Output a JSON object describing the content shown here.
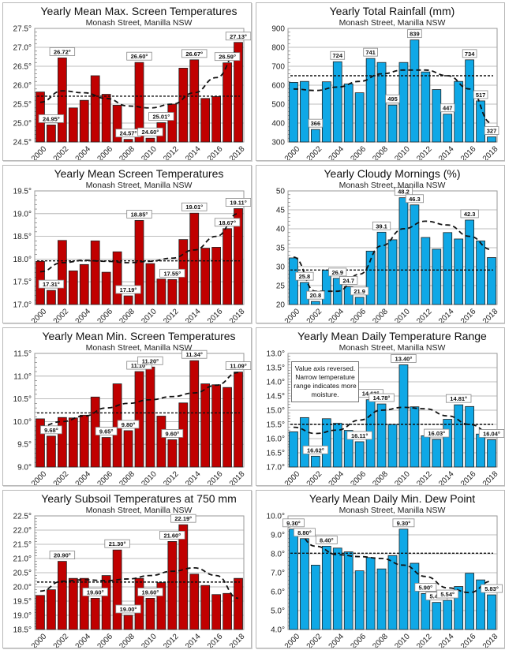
{
  "chart_data": [
    {
      "type": "bar",
      "title": "Yearly Mean Max. Screen Temperatures",
      "subtitle": "Monash Street, Manilla NSW",
      "bar_color": "#c00000",
      "years": [
        2000,
        2001,
        2002,
        2003,
        2004,
        2005,
        2006,
        2007,
        2008,
        2009,
        2010,
        2011,
        2012,
        2013,
        2014,
        2015,
        2016,
        2017,
        2018
      ],
      "x_tick_labels": [
        "2000",
        "2002",
        "2004",
        "2006",
        "2008",
        "2010",
        "2012",
        "2014",
        "2016",
        "2018"
      ],
      "ylim": [
        24.5,
        27.5
      ],
      "reversed": false,
      "y_tick_labels": [
        "24.5°",
        "25.0°",
        "25.5°",
        "26.0°",
        "26.5°",
        "27.0°",
        "27.5°"
      ],
      "values": [
        25.82,
        24.95,
        26.72,
        25.4,
        25.6,
        26.25,
        25.76,
        25.47,
        24.57,
        26.6,
        24.6,
        25.01,
        25.5,
        26.45,
        26.67,
        25.65,
        25.7,
        26.59,
        27.13
      ],
      "data_labels": [
        null,
        "24.95°",
        "26.72°",
        null,
        null,
        null,
        null,
        null,
        "24.57°",
        "26.60°",
        "24.60°",
        "25.01°",
        null,
        null,
        "26.67°",
        null,
        null,
        "26.59°",
        "27.13°"
      ],
      "mean": 25.71,
      "trend": [
        25.55,
        25.85,
        25.8,
        25.65,
        25.45,
        25.4,
        25.5,
        25.8,
        26.2,
        26.9
      ]
    },
    {
      "type": "bar",
      "title": "Yearly Total Rainfall (mm)",
      "subtitle": "Monash Street, Manilla NSW",
      "bar_color": "#0fa8e6",
      "years": [
        2000,
        2001,
        2002,
        2003,
        2004,
        2005,
        2006,
        2007,
        2008,
        2009,
        2010,
        2011,
        2012,
        2013,
        2014,
        2015,
        2016,
        2017,
        2018
      ],
      "x_tick_labels": [
        "2000",
        "2002",
        "2004",
        "2006",
        "2008",
        "2010",
        "2012",
        "2014",
        "2016",
        "2018"
      ],
      "ylim": [
        300,
        900
      ],
      "reversed": false,
      "y_tick_labels": [
        "300",
        "400",
        "500",
        "600",
        "700",
        "800",
        "900"
      ],
      "values": [
        615,
        620,
        366,
        618,
        724,
        607,
        560,
        741,
        720,
        495,
        720,
        839,
        670,
        577,
        447,
        620,
        734,
        517,
        327
      ],
      "data_labels": [
        null,
        null,
        "366",
        null,
        "724",
        null,
        null,
        "741",
        null,
        "495",
        null,
        "839",
        null,
        null,
        "447",
        null,
        "734",
        "517",
        "327"
      ],
      "mean": 650,
      "trend": [
        580,
        572,
        590,
        620,
        660,
        680,
        680,
        650,
        580,
        400
      ]
    },
    {
      "type": "bar",
      "title": "Yearly Mean Screen Temperatures",
      "subtitle": "Monash Street, Manilla NSW",
      "bar_color": "#c00000",
      "years": [
        2000,
        2001,
        2002,
        2003,
        2004,
        2005,
        2006,
        2007,
        2008,
        2009,
        2010,
        2011,
        2012,
        2013,
        2014,
        2015,
        2016,
        2017,
        2018
      ],
      "x_tick_labels": [
        "2000",
        "2002",
        "2004",
        "2006",
        "2008",
        "2010",
        "2012",
        "2014",
        "2016",
        "2018"
      ],
      "ylim": [
        17.0,
        19.5
      ],
      "reversed": false,
      "y_tick_labels": [
        "17.0°",
        "17.5°",
        "18.0°",
        "18.5°",
        "19.0°",
        "19.5°"
      ],
      "values": [
        17.95,
        17.31,
        18.41,
        17.74,
        17.88,
        18.4,
        17.71,
        18.16,
        17.19,
        18.85,
        17.9,
        17.56,
        17.55,
        18.43,
        19.01,
        18.24,
        18.26,
        18.67,
        19.11
      ],
      "data_labels": [
        null,
        "17.31°",
        null,
        null,
        null,
        null,
        null,
        null,
        "17.19°",
        "18.85°",
        null,
        null,
        "17.55°",
        null,
        "19.01°",
        null,
        null,
        "18.67°",
        "19.11°"
      ],
      "mean": 17.96,
      "trend": [
        17.72,
        17.92,
        17.97,
        17.95,
        17.92,
        17.95,
        18.02,
        18.2,
        18.5,
        19.0
      ]
    },
    {
      "type": "bar",
      "title": "Yearly Cloudy Mornings (%)",
      "subtitle": "Monash Street, Manilla NSW",
      "bar_color": "#0fa8e6",
      "years": [
        2000,
        2001,
        2002,
        2003,
        2004,
        2005,
        2006,
        2007,
        2008,
        2009,
        2010,
        2011,
        2012,
        2013,
        2014,
        2015,
        2016,
        2017,
        2018
      ],
      "x_tick_labels": [
        "2000",
        "2002",
        "2004",
        "2006",
        "2008",
        "2010",
        "2012",
        "2014",
        "2016",
        "2018"
      ],
      "ylim": [
        20,
        50
      ],
      "reversed": false,
      "y_tick_labels": [
        "20",
        "25",
        "30",
        "35",
        "40",
        "45",
        "50"
      ],
      "values": [
        32.3,
        25.8,
        20.8,
        29.1,
        26.9,
        24.7,
        21.9,
        34.1,
        39.1,
        37.1,
        48.2,
        46.3,
        37.7,
        34.6,
        39.0,
        37.3,
        42.3,
        36.8,
        32.4
      ],
      "data_labels": [
        null,
        "25.8",
        "20.8",
        null,
        "26.9",
        "24.7",
        "21.9",
        null,
        "39.1",
        null,
        "48.2",
        "46.3",
        null,
        null,
        null,
        null,
        "42.3",
        null,
        null
      ],
      "mean": 29.1,
      "trend": [
        32.5,
        23.5,
        23.5,
        28,
        35.5,
        40,
        42,
        41,
        38,
        34.5
      ]
    },
    {
      "type": "bar",
      "title": "Yearly Mean Min. Screen Temperatures",
      "subtitle": "Monash Street, Manilla NSW",
      "bar_color": "#c00000",
      "years": [
        2000,
        2001,
        2002,
        2003,
        2004,
        2005,
        2006,
        2007,
        2008,
        2009,
        2010,
        2011,
        2012,
        2013,
        2014,
        2015,
        2016,
        2017,
        2018
      ],
      "x_tick_labels": [
        "2000",
        "2002",
        "2004",
        "2006",
        "2008",
        "2010",
        "2012",
        "2014",
        "2016",
        "2018"
      ],
      "ylim": [
        9.0,
        11.5
      ],
      "reversed": false,
      "y_tick_labels": [
        "9.0°",
        "9.5°",
        "10.0°",
        "10.5°",
        "11.0°",
        "11.5°"
      ],
      "values": [
        10.06,
        9.68,
        10.09,
        10.08,
        10.14,
        10.54,
        9.65,
        10.83,
        9.8,
        11.1,
        11.2,
        10.12,
        9.6,
        10.41,
        11.34,
        10.83,
        10.81,
        10.75,
        11.09
      ],
      "data_labels": [
        null,
        "9.68°",
        null,
        null,
        null,
        null,
        "9.65°",
        null,
        "9.80°",
        "11.10°",
        "11.20°",
        null,
        "9.60°",
        null,
        "11.34°",
        null,
        null,
        null,
        "11.09°"
      ],
      "mean": 10.19,
      "trend": [
        9.9,
        10.0,
        10.12,
        10.3,
        10.4,
        10.48,
        10.55,
        10.63,
        10.8,
        11.08
      ]
    },
    {
      "type": "bar",
      "title": "Yearly Mean Daily Temperature Range",
      "subtitle": "Monash Street, Manilla NSW",
      "bar_color": "#0fa8e6",
      "note": "Value axis reversed. Narrow temperature range indicates more moisture.",
      "years": [
        2000,
        2001,
        2002,
        2003,
        2004,
        2005,
        2006,
        2007,
        2008,
        2009,
        2010,
        2011,
        2012,
        2013,
        2014,
        2015,
        2016,
        2017,
        2018
      ],
      "x_tick_labels": [
        "2000",
        "2002",
        "2004",
        "2006",
        "2008",
        "2010",
        "2012",
        "2014",
        "2016",
        "2018"
      ],
      "ylim": [
        13.0,
        17.0
      ],
      "reversed": true,
      "y_tick_labels": [
        "13.0°",
        "13.5°",
        "14.0°",
        "14.5°",
        "15.0°",
        "15.5°",
        "16.0°",
        "16.5°",
        "17.0°"
      ],
      "values": [
        15.76,
        15.26,
        16.62,
        15.3,
        15.46,
        15.71,
        16.11,
        14.63,
        14.78,
        15.5,
        13.4,
        14.88,
        15.9,
        16.03,
        15.32,
        14.81,
        14.87,
        15.84,
        16.04
      ],
      "data_labels": [
        null,
        null,
        "16.62°",
        null,
        null,
        null,
        "16.11°",
        "14.63°",
        "14.78°",
        null,
        "13.40°",
        null,
        null,
        "16.03°",
        null,
        "14.81°",
        null,
        null,
        "16.04°"
      ],
      "mean": 15.5,
      "trend": [
        15.6,
        15.82,
        15.7,
        15.35,
        15.0,
        14.9,
        14.95,
        15.2,
        15.5,
        15.82
      ]
    },
    {
      "type": "bar",
      "title": "Yearly Subsoil Temperatures at 750 mm",
      "subtitle": "Monash Street, Manilla NSW",
      "bar_color": "#c00000",
      "years": [
        2000,
        2001,
        2002,
        2003,
        2004,
        2005,
        2006,
        2007,
        2008,
        2009,
        2010,
        2011,
        2012,
        2013,
        2014,
        2015,
        2016,
        2017,
        2018
      ],
      "x_tick_labels": [
        "2000",
        "2002",
        "2004",
        "2006",
        "2008",
        "2010",
        "2012",
        "2014",
        "2016",
        "2018"
      ],
      "ylim": [
        18.5,
        22.5
      ],
      "reversed": false,
      "y_tick_labels": [
        "18.5°",
        "19.0°",
        "19.5°",
        "20.0°",
        "20.5°",
        "21.0°",
        "21.5°",
        "22.0°",
        "22.5°"
      ],
      "values": [
        19.7,
        19.9,
        20.9,
        20.3,
        20.3,
        19.6,
        20.4,
        21.3,
        19.0,
        20.3,
        19.6,
        20.15,
        21.6,
        22.19,
        20.45,
        20.05,
        19.73,
        19.77,
        20.3
      ],
      "data_labels": [
        null,
        null,
        "20.90°",
        null,
        null,
        "19.60°",
        null,
        "21.30°",
        "19.00°",
        null,
        "19.60°",
        null,
        "21.60°",
        "22.19°",
        null,
        null,
        null,
        null,
        null
      ],
      "mean": 20.17,
      "trend": [
        19.85,
        20.2,
        20.25,
        20.22,
        20.28,
        20.4,
        20.55,
        20.67,
        20.4,
        19.6
      ]
    },
    {
      "type": "bar",
      "title": "Yearly Mean Daily Min. Dew Point",
      "subtitle": "Monash Street, Manilla NSW",
      "bar_color": "#0fa8e6",
      "years": [
        2000,
        2001,
        2002,
        2003,
        2004,
        2005,
        2006,
        2007,
        2008,
        2009,
        2010,
        2011,
        2012,
        2013,
        2014,
        2015,
        2016,
        2017,
        2018
      ],
      "x_tick_labels": [
        "2000",
        "2002",
        "2004",
        "2006",
        "2008",
        "2010",
        "2012",
        "2014",
        "2016",
        "2018"
      ],
      "ylim": [
        4.0,
        10.0
      ],
      "reversed": false,
      "y_tick_labels": [
        "4.0°",
        "5.0°",
        "6.0°",
        "7.0°",
        "8.0°",
        "9.0°",
        "10.0°"
      ],
      "values": [
        9.3,
        8.8,
        7.4,
        8.4,
        8.3,
        8.1,
        7.1,
        7.8,
        7.2,
        7.9,
        9.3,
        7.5,
        5.9,
        5.43,
        5.54,
        6.27,
        6.97,
        6.62,
        5.83
      ],
      "data_labels": [
        "9.30°",
        "8.80°",
        null,
        "8.40°",
        null,
        null,
        null,
        null,
        null,
        null,
        "9.30°",
        null,
        "5.90°",
        "5.43°",
        "5.54°",
        null,
        null,
        null,
        "5.83°"
      ],
      "mean": 8.03,
      "trend": [
        9.3,
        8.4,
        7.95,
        7.85,
        7.75,
        7.4,
        6.8,
        6.2,
        5.95,
        6.55
      ]
    }
  ]
}
